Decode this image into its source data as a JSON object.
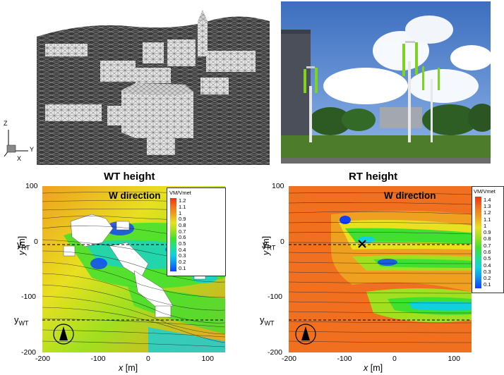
{
  "panels": {
    "mesh_triad": {
      "z": "Z",
      "y": "Y",
      "x": "X"
    },
    "left_map": {
      "title": "WT height",
      "direction": "W direction",
      "colorbar_label": "VM/Vmet",
      "colorbar_ticks": [
        "1.2",
        "1.1",
        "1",
        "0.9",
        "0.8",
        "0.7",
        "0.6",
        "0.5",
        "0.4",
        "0.3",
        "0.2",
        "0.1"
      ],
      "xticks": [
        "-200",
        "-100",
        "0",
        "100"
      ],
      "yticks": [
        "100",
        "0",
        "-100",
        "-200"
      ],
      "xlabel_var": "x",
      "xlabel_unit": " [m]",
      "ylabel_var": "y",
      "ylabel_unit": " [m]",
      "y_rt": {
        "main": "y",
        "sub": "RT"
      },
      "y_wt": {
        "main": "y",
        "sub": "WT"
      }
    },
    "right_map": {
      "title": "RT height",
      "direction": "W direction",
      "colorbar_label": "VM/Vmet",
      "colorbar_ticks": [
        "1.4",
        "1.3",
        "1.2",
        "1.1",
        "1",
        "0.9",
        "0.8",
        "0.7",
        "0.6",
        "0.5",
        "0.4",
        "0.3",
        "0.2",
        "0.1"
      ],
      "xticks": [
        "-200",
        "-100",
        "0",
        "100"
      ],
      "yticks": [
        "100",
        "0",
        "-100",
        "-200"
      ],
      "xlabel_var": "x",
      "xlabel_unit": " [m]",
      "ylabel_var": "y",
      "ylabel_unit": " [m]",
      "y_rt": {
        "main": "y",
        "sub": "RT"
      },
      "y_wt": {
        "main": "y",
        "sub": "WT"
      }
    }
  },
  "chart_data": [
    {
      "type": "heatmap",
      "title": "WT height",
      "annotation": "W direction",
      "xlabel": "x [m]",
      "ylabel": "y [m]",
      "xlim": [
        -200,
        130
      ],
      "ylim": [
        -200,
        100
      ],
      "colorbar": {
        "label": "VM/Vmet",
        "min": 0.1,
        "max": 1.2
      },
      "reference_lines_y": {
        "y_RT": -5,
        "y_WT": -145
      }
    },
    {
      "type": "heatmap",
      "title": "RT height",
      "annotation": "W direction",
      "xlabel": "x [m]",
      "ylabel": "y [m]",
      "xlim": [
        -200,
        130
      ],
      "ylim": [
        -200,
        100
      ],
      "colorbar": {
        "label": "VM/Vmet",
        "min": 0.1,
        "max": 1.4
      },
      "reference_lines_y": {
        "y_RT": -5,
        "y_WT": -145
      },
      "marker": {
        "x": -70,
        "y": -5,
        "symbol": "x"
      }
    }
  ],
  "colors": {
    "blue": "#1040ff",
    "cyan": "#10d0e0",
    "green": "#40e030",
    "yellow": "#e8e020",
    "orange": "#f0a020",
    "red": "#f03010",
    "sky": "#5e8fd6",
    "grass": "#4d7d2a",
    "turbine": "#7ed321"
  }
}
